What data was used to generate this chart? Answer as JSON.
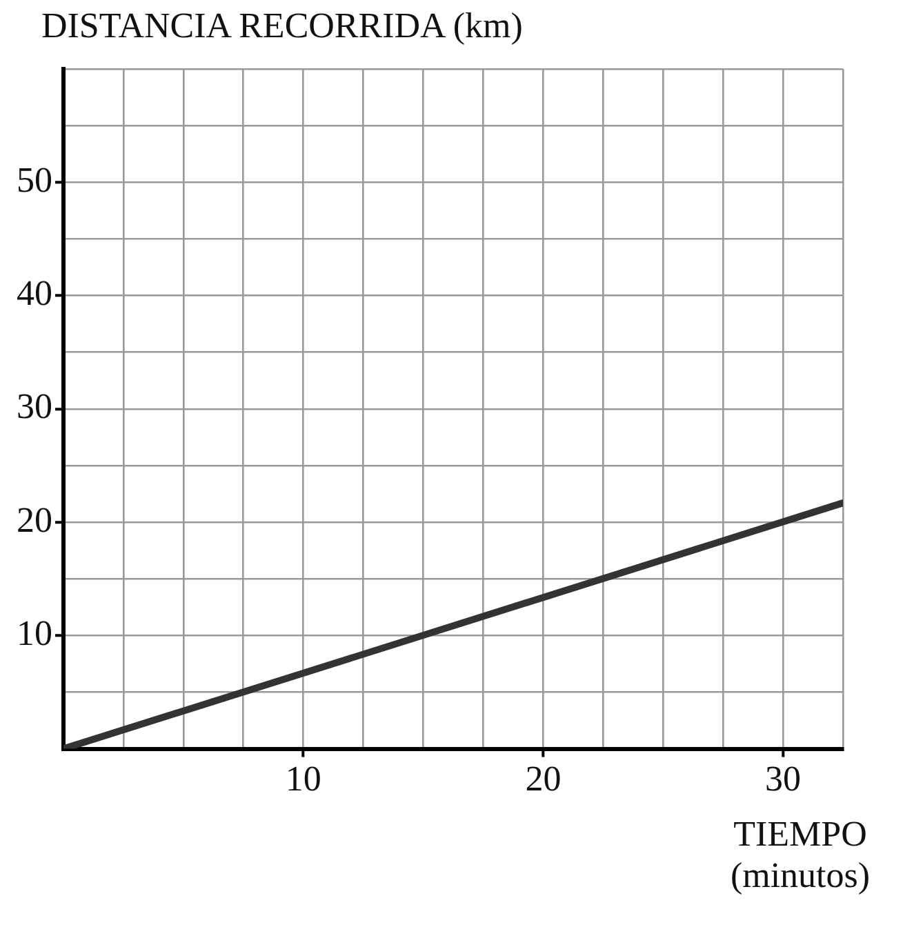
{
  "chart_data": {
    "type": "line",
    "title": "DISTANCIA RECORRIDA (km)",
    "xlabel": "TIEMPO (minutos)",
    "x": [
      0,
      32.5
    ],
    "series": [
      {
        "color": "#333333",
        "values": [
          0,
          21.7
        ]
      }
    ],
    "xlim": [
      0,
      32.5
    ],
    "xticks": [
      {
        "value": 0,
        "label": null
      },
      {
        "value": 2.5,
        "label": null
      },
      {
        "value": 5,
        "label": null
      },
      {
        "value": 7.5,
        "label": null
      },
      10,
      {
        "value": 12.5,
        "label": null
      },
      {
        "value": 15,
        "label": null
      },
      {
        "value": 17.5,
        "label": null
      },
      20,
      {
        "value": 22.5,
        "label": null
      },
      {
        "value": 25,
        "label": null
      },
      {
        "value": 27.5,
        "label": null
      },
      30,
      {
        "value": 32.5,
        "label": null
      }
    ],
    "ylim": [
      0,
      60
    ],
    "yticks": [
      {
        "value": 0,
        "label": null
      },
      {
        "value": 5,
        "label": null
      },
      10,
      {
        "value": 15,
        "label": null
      },
      20,
      {
        "value": 25,
        "label": null
      },
      30,
      {
        "value": 35,
        "label": null
      },
      40,
      {
        "value": 45,
        "label": null
      },
      50,
      {
        "value": 55,
        "label": null
      },
      {
        "value": 60,
        "label": null
      }
    ],
    "grid": true,
    "legend": false,
    "marker": "none",
    "line_style": "solid"
  }
}
